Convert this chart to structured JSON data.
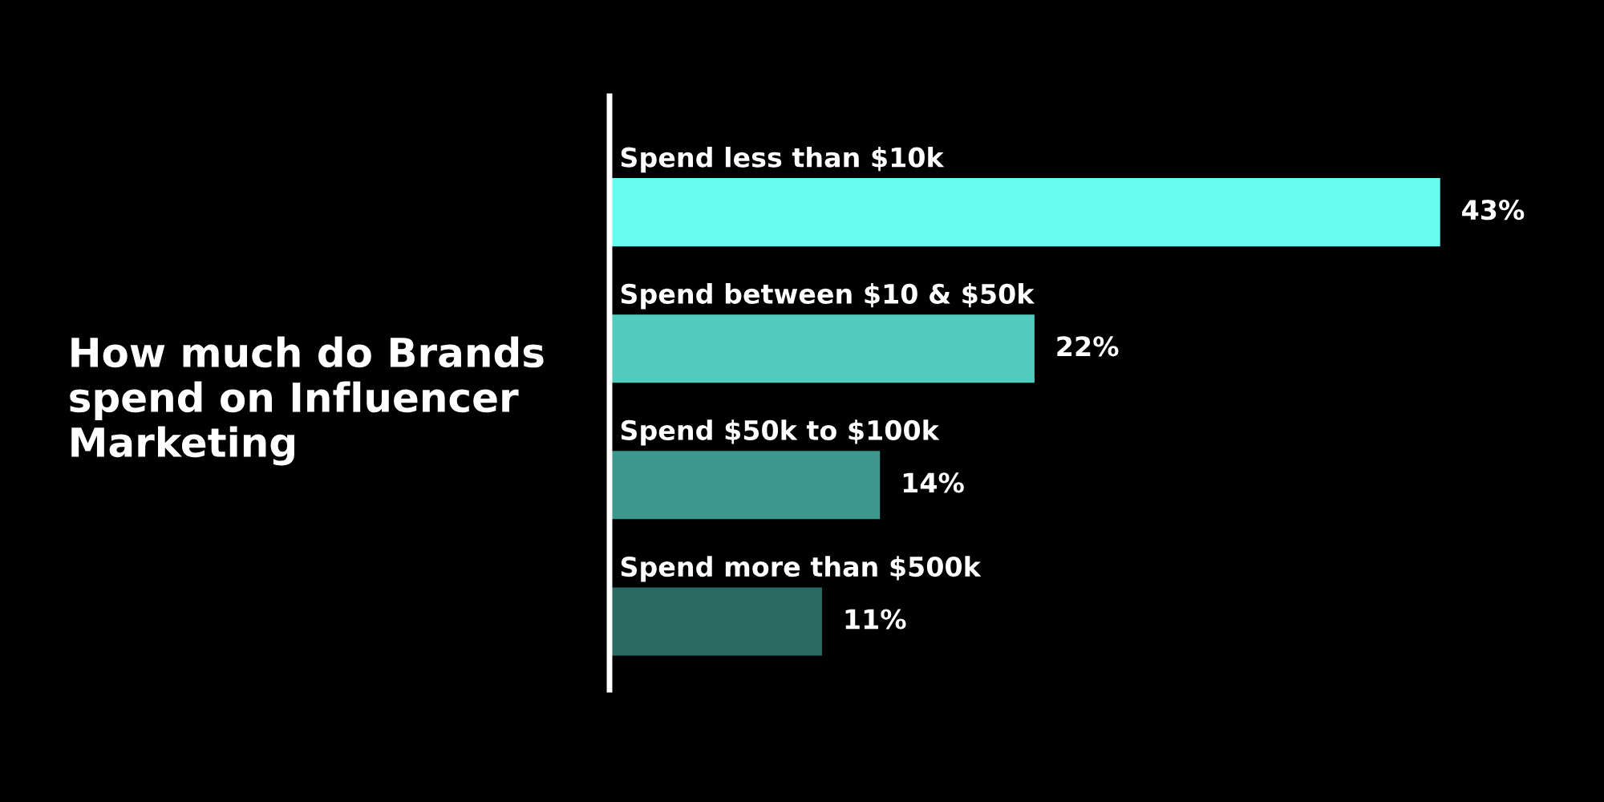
{
  "chart_data": {
    "type": "bar",
    "orientation": "horizontal",
    "title": "How much do Brands spend on Influencer Marketing",
    "categories": [
      "Spend less than $10k",
      "Spend between $10 & $50k",
      "Spend $50k to $100k",
      "Spend more than $500k"
    ],
    "values": [
      43,
      22,
      14,
      11
    ],
    "colors": [
      "#66fcf1",
      "#52cbbf",
      "#3d978d",
      "#2a6a62"
    ],
    "value_labels": [
      "43%",
      "22%",
      "14%",
      "11%"
    ],
    "tick_labels": false,
    "legend": false
  }
}
